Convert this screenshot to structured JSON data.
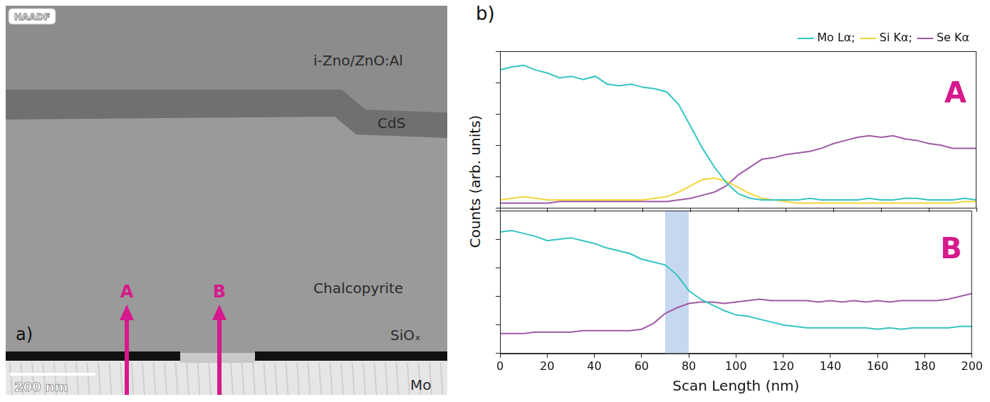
{
  "image_panel": {
    "label": "a)",
    "badge": "HAADF",
    "layers": [
      "i-Zno/ZnO:Al",
      "CdS",
      "Chalcopyrite",
      "SiOₓ",
      "Mo"
    ],
    "scale_bar": "200 nm",
    "arrows": [
      "A",
      "B"
    ],
    "arrow_color": "#d6198c"
  },
  "figure_label": "b)",
  "ylabel": "Counts (arb. units)",
  "chart_data": [
    {
      "type": "line",
      "panel_letter": "A",
      "legend": "top right",
      "grid": false,
      "tick_labels": false,
      "x": [
        0,
        5,
        10,
        15,
        20,
        25,
        30,
        35,
        40,
        45,
        50,
        55,
        60,
        65,
        70,
        75,
        80,
        85,
        90,
        95,
        100,
        105,
        110,
        115,
        120,
        125,
        130,
        135,
        140,
        145,
        150,
        155,
        160,
        165,
        170,
        175,
        180,
        185,
        190,
        195,
        200
      ],
      "series": [
        {
          "name": "Mo Lα;",
          "color": "#35c4c4",
          "values": [
            88,
            90,
            91,
            88,
            86,
            83,
            84,
            82,
            84,
            79,
            78,
            79,
            77,
            76,
            74,
            66,
            52,
            38,
            26,
            16,
            9,
            6,
            5,
            5,
            5,
            5,
            6,
            5,
            5,
            5,
            5,
            6,
            5,
            5,
            6,
            6,
            5,
            5,
            5,
            6,
            5
          ]
        },
        {
          "name": "Si Kα;",
          "color": "#f2d43a",
          "values": [
            5,
            6,
            7,
            6,
            5,
            5,
            5,
            5,
            5,
            5,
            5,
            5,
            5,
            6,
            7,
            10,
            14,
            18,
            19,
            17,
            13,
            9,
            6,
            5,
            4,
            3,
            3,
            3,
            3,
            3,
            3,
            3,
            3,
            3,
            3,
            3,
            3,
            3,
            3,
            4,
            4
          ]
        },
        {
          "name": "Se Kα",
          "color": "#a05ba8",
          "values": [
            3,
            3,
            3,
            3,
            3,
            4,
            4,
            4,
            4,
            4,
            4,
            4,
            4,
            4,
            4,
            5,
            6,
            8,
            10,
            14,
            21,
            26,
            31,
            32,
            34,
            35,
            36,
            38,
            41,
            43,
            45,
            46,
            45,
            46,
            44,
            43,
            41,
            40,
            38,
            38,
            38
          ]
        }
      ],
      "xlim": [
        0,
        200
      ],
      "xticks": [
        0,
        20,
        40,
        60,
        80,
        100,
        120,
        140,
        160,
        180,
        200
      ],
      "ylim": [
        0,
        100
      ],
      "yticks": [
        0,
        20,
        40,
        60,
        80,
        100
      ]
    },
    {
      "type": "line",
      "panel_letter": "B",
      "grid": false,
      "tick_labels": "x",
      "xlabel": "Scan Length (nm)",
      "highlight": [
        70,
        80
      ],
      "x": [
        0,
        5,
        10,
        15,
        20,
        25,
        30,
        35,
        40,
        45,
        50,
        55,
        60,
        65,
        70,
        75,
        80,
        85,
        90,
        95,
        100,
        105,
        110,
        115,
        120,
        125,
        130,
        135,
        140,
        145,
        150,
        155,
        160,
        165,
        170,
        175,
        180,
        185,
        190,
        195,
        200
      ],
      "series": [
        {
          "color": "#35c4c4",
          "values": [
            85,
            86,
            84,
            82,
            79,
            80,
            81,
            79,
            77,
            74,
            72,
            70,
            66,
            64,
            62,
            55,
            44,
            38,
            34,
            30,
            27,
            26,
            24,
            22,
            20,
            19,
            18,
            18,
            18,
            18,
            18,
            18,
            17,
            18,
            17,
            18,
            18,
            18,
            18,
            19,
            19
          ]
        },
        {
          "color": "#a05ba8",
          "values": [
            14,
            14,
            14,
            15,
            15,
            15,
            15,
            16,
            16,
            16,
            16,
            16,
            17,
            21,
            28,
            32,
            35,
            36,
            36,
            35,
            36,
            37,
            38,
            37,
            37,
            37,
            37,
            36,
            37,
            36,
            37,
            36,
            37,
            36,
            37,
            37,
            37,
            37,
            38,
            40,
            42
          ]
        }
      ],
      "xlim": [
        0,
        200
      ],
      "xticks": [
        0,
        20,
        40,
        60,
        80,
        100,
        120,
        140,
        160,
        180,
        200
      ],
      "ylim": [
        0,
        100
      ],
      "yticks": [
        0,
        20,
        40,
        60,
        80,
        100
      ]
    }
  ]
}
